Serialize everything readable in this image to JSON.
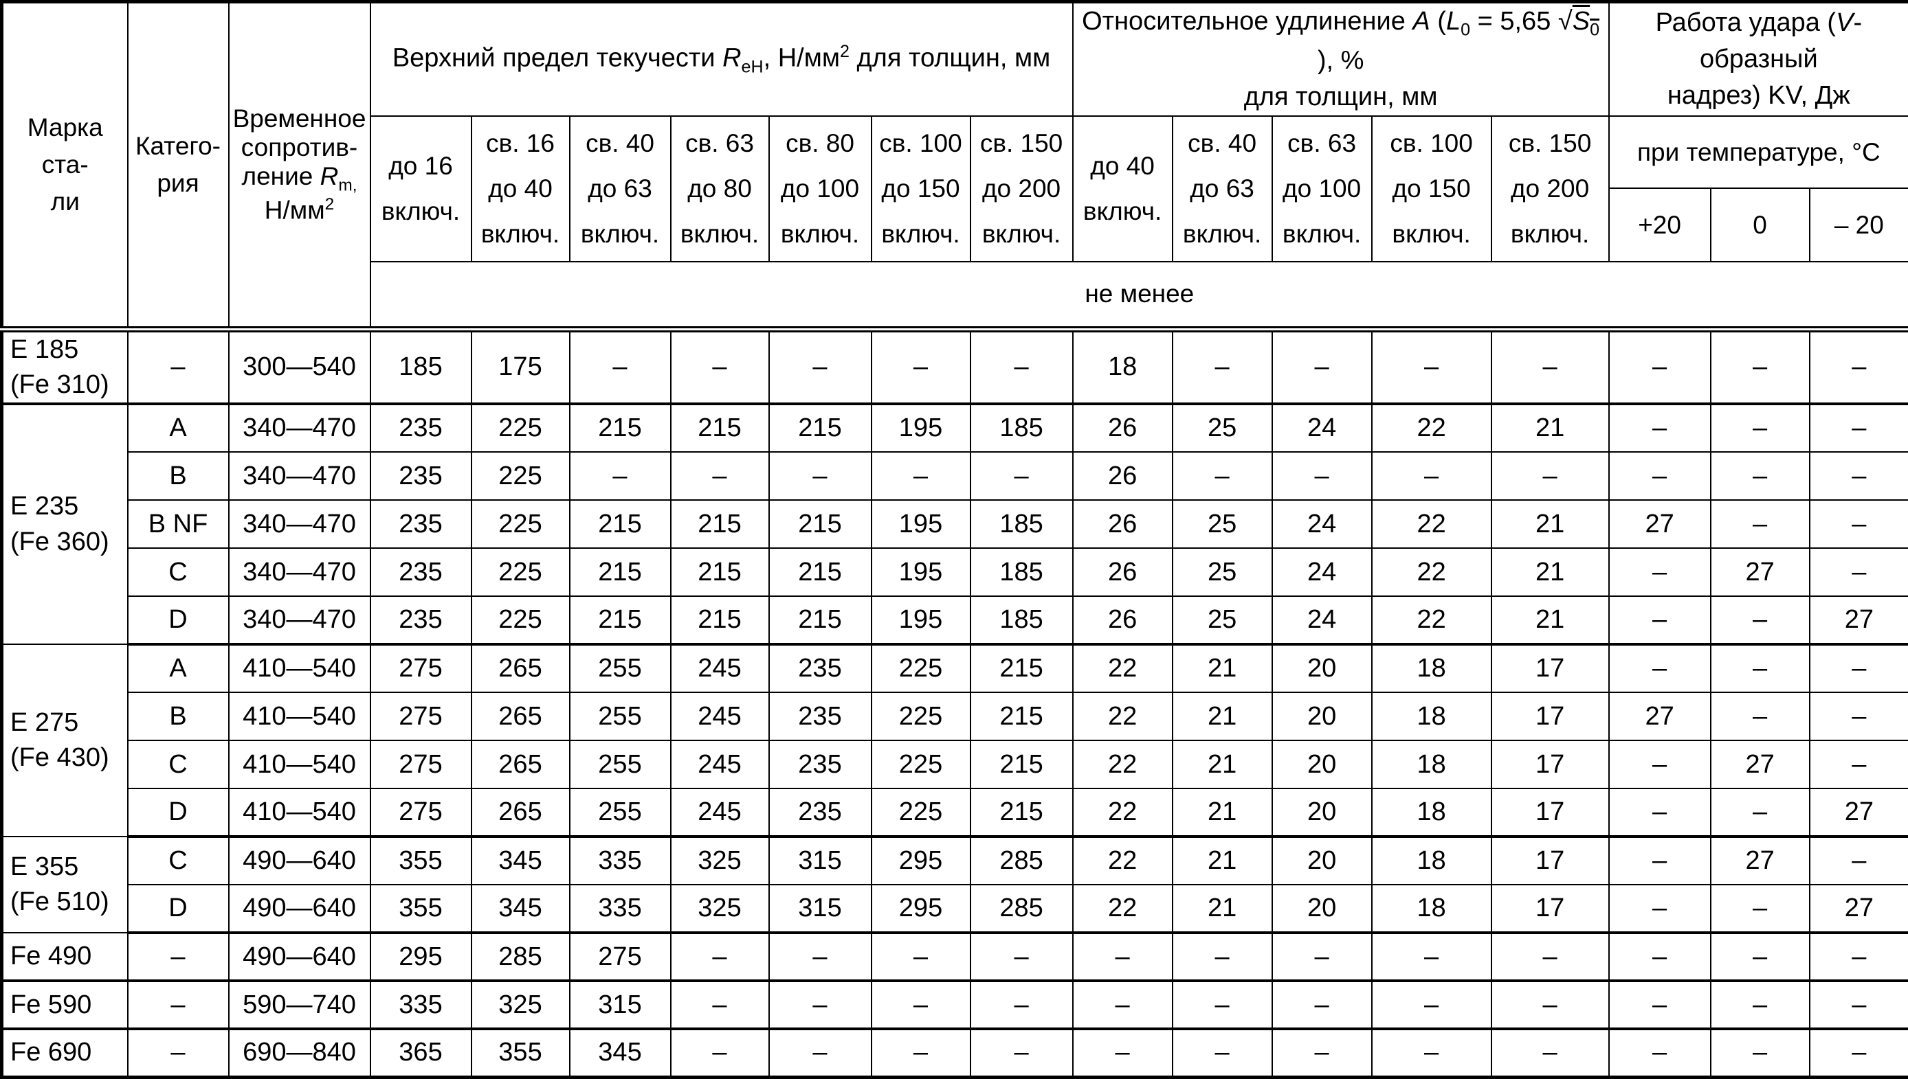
{
  "page": {
    "background": "#ffffff",
    "text_color": "#000000",
    "border_color": "#000000"
  },
  "table": {
    "headers": {
      "grade": "Марка ста-\nли",
      "category": "Катего-\nрия",
      "rm": {
        "line1": "Временное",
        "line2": "сопротив-",
        "line3_text": "ление ",
        "line3_sym": "R",
        "line3_sub": "m,",
        "line4_text": "Н/мм",
        "line4_sup": "2"
      },
      "yield_group": {
        "text1": "Верхний предел текучести ",
        "sym": "R",
        "sub": "еН",
        "text2": ", Н/мм",
        "sup": "2",
        "text3": " для толщин, мм"
      },
      "elong_group": {
        "text1": "Относительное удлинение ",
        "sym_a": "A",
        "text2": " (",
        "sym_l": "L",
        "sub_l": "0",
        "text3": " = 5,65 ",
        "sqrt_sym": "√",
        "sym_s": "S",
        "sub_s": "0",
        "text4": " ), %",
        "line2": "для толщин, мм"
      },
      "kv_group": {
        "text1": "Работа удара (",
        "sym_v": "V",
        "text2": "-образный",
        "line2": "надрез) KV, Дж"
      },
      "temp_row": "при температуре, °С",
      "temp_cols": [
        "+20",
        "0",
        "– 20"
      ],
      "yield_cols": [
        "до 16\nвключ.",
        "св. 16\nдо 40\nвключ.",
        "св. 40\nдо 63\nвключ.",
        "св. 63\nдо 80\nвключ.",
        "св. 80\nдо 100\nвключ.",
        "св. 100\nдо 150\nвключ.",
        "св. 150\nдо 200\nвключ."
      ],
      "elong_cols": [
        "до 40\nвключ.",
        "св. 40\nдо 63\nвключ.",
        "св. 63\nдо 100\nвключ.",
        "св. 100\nдо 150\nвключ.",
        "св. 150\nдо 200\nвключ."
      ],
      "ne_menee": "не менее"
    },
    "groups": [
      {
        "grade": "Е 185\n(Fe 310)",
        "rows": [
          {
            "cat": "–",
            "rm": "300—540",
            "vals": [
              "185",
              "175",
              "–",
              "–",
              "–",
              "–",
              "–",
              "18",
              "–",
              "–",
              "–",
              "–",
              "–",
              "–",
              "–"
            ]
          }
        ]
      },
      {
        "grade": "Е 235\n(Fe 360)",
        "rows": [
          {
            "cat": "A",
            "rm": "340—470",
            "vals": [
              "235",
              "225",
              "215",
              "215",
              "215",
              "195",
              "185",
              "26",
              "25",
              "24",
              "22",
              "21",
              "–",
              "–",
              "–"
            ]
          },
          {
            "cat": "B",
            "rm": "340—470",
            "vals": [
              "235",
              "225",
              "–",
              "–",
              "–",
              "–",
              "–",
              "26",
              "–",
              "–",
              "–",
              "–",
              "–",
              "–",
              "–"
            ]
          },
          {
            "cat": "B NF",
            "rm": "340—470",
            "vals": [
              "235",
              "225",
              "215",
              "215",
              "215",
              "195",
              "185",
              "26",
              "25",
              "24",
              "22",
              "21",
              "27",
              "–",
              "–"
            ]
          },
          {
            "cat": "C",
            "rm": "340—470",
            "vals": [
              "235",
              "225",
              "215",
              "215",
              "215",
              "195",
              "185",
              "26",
              "25",
              "24",
              "22",
              "21",
              "–",
              "27",
              "–"
            ]
          },
          {
            "cat": "D",
            "rm": "340—470",
            "vals": [
              "235",
              "225",
              "215",
              "215",
              "215",
              "195",
              "185",
              "26",
              "25",
              "24",
              "22",
              "21",
              "–",
              "–",
              "27"
            ]
          }
        ]
      },
      {
        "grade": "Е 275\n(Fe 430)",
        "rows": [
          {
            "cat": "A",
            "rm": "410—540",
            "vals": [
              "275",
              "265",
              "255",
              "245",
              "235",
              "225",
              "215",
              "22",
              "21",
              "20",
              "18",
              "17",
              "–",
              "–",
              "–"
            ]
          },
          {
            "cat": "B",
            "rm": "410—540",
            "vals": [
              "275",
              "265",
              "255",
              "245",
              "235",
              "225",
              "215",
              "22",
              "21",
              "20",
              "18",
              "17",
              "27",
              "–",
              "–"
            ]
          },
          {
            "cat": "C",
            "rm": "410—540",
            "vals": [
              "275",
              "265",
              "255",
              "245",
              "235",
              "225",
              "215",
              "22",
              "21",
              "20",
              "18",
              "17",
              "–",
              "27",
              "–"
            ]
          },
          {
            "cat": "D",
            "rm": "410—540",
            "vals": [
              "275",
              "265",
              "255",
              "245",
              "235",
              "225",
              "215",
              "22",
              "21",
              "20",
              "18",
              "17",
              "–",
              "–",
              "27"
            ]
          }
        ]
      },
      {
        "grade": "Е 355\n(Fe 510)",
        "rows": [
          {
            "cat": "C",
            "rm": "490—640",
            "vals": [
              "355",
              "345",
              "335",
              "325",
              "315",
              "295",
              "285",
              "22",
              "21",
              "20",
              "18",
              "17",
              "–",
              "27",
              "–"
            ]
          },
          {
            "cat": "D",
            "rm": "490—640",
            "vals": [
              "355",
              "345",
              "335",
              "325",
              "315",
              "295",
              "285",
              "22",
              "21",
              "20",
              "18",
              "17",
              "–",
              "–",
              "27"
            ]
          }
        ]
      },
      {
        "grade": "Fe 490",
        "rows": [
          {
            "cat": "–",
            "rm": "490—640",
            "vals": [
              "295",
              "285",
              "275",
              "–",
              "–",
              "–",
              "–",
              "–",
              "–",
              "–",
              "–",
              "–",
              "–",
              "–",
              "–"
            ]
          }
        ]
      },
      {
        "grade": "Fe 590",
        "rows": [
          {
            "cat": "–",
            "rm": "590—740",
            "vals": [
              "335",
              "325",
              "315",
              "–",
              "–",
              "–",
              "–",
              "–",
              "–",
              "–",
              "–",
              "–",
              "–",
              "–",
              "–"
            ]
          }
        ]
      },
      {
        "grade": "Fe 690",
        "rows": [
          {
            "cat": "–",
            "rm": "690—840",
            "vals": [
              "365",
              "355",
              "345",
              "–",
              "–",
              "–",
              "–",
              "–",
              "–",
              "–",
              "–",
              "–",
              "–",
              "–",
              "–"
            ]
          }
        ]
      }
    ]
  }
}
